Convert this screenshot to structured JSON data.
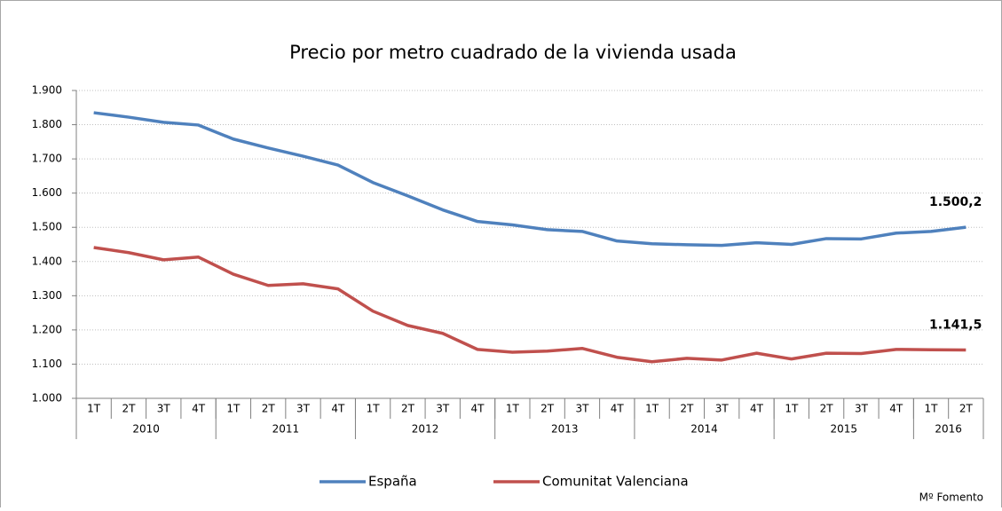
{
  "chart_data": {
    "type": "line",
    "title": "Precio por metro cuadrado de la vivienda usada",
    "source": "Mº Fomento",
    "categories": [
      "1T",
      "2T",
      "3T",
      "4T",
      "1T",
      "2T",
      "3T",
      "4T",
      "1T",
      "2T",
      "3T",
      "4T",
      "1T",
      "2T",
      "3T",
      "4T",
      "1T",
      "2T",
      "3T",
      "4T",
      "1T",
      "2T",
      "3T",
      "4T",
      "1T",
      "2T"
    ],
    "category_groups": [
      {
        "name": "2010",
        "span": 4
      },
      {
        "name": "2011",
        "span": 4
      },
      {
        "name": "2012",
        "span": 4
      },
      {
        "name": "2013",
        "span": 4
      },
      {
        "name": "2014",
        "span": 4
      },
      {
        "name": "2015",
        "span": 4
      },
      {
        "name": "2016",
        "span": 2
      }
    ],
    "series": [
      {
        "name": "España",
        "color": "#4f81bd",
        "label_color": "#1f4e79",
        "values": [
          1835,
          1822,
          1807,
          1799,
          1758,
          1732,
          1708,
          1682,
          1631,
          1592,
          1551,
          1517,
          1507,
          1493,
          1488,
          1460,
          1452,
          1449,
          1447,
          1455,
          1450,
          1467,
          1466,
          1483,
          1488,
          1500.2
        ],
        "value_labels": [
          null,
          null,
          null,
          null,
          null,
          null,
          null,
          null,
          null,
          null,
          null,
          null,
          null,
          null,
          null,
          null,
          null,
          null,
          null,
          null,
          null,
          null,
          null,
          null,
          null,
          "1.500,2"
        ]
      },
      {
        "name": "Comunitat Valenciana",
        "color": "#c0504d",
        "label_color": "#943634",
        "values": [
          1441,
          1426,
          1405,
          1413,
          1363,
          1330,
          1335,
          1320,
          1255,
          1213,
          1190,
          1143,
          1135,
          1138,
          1146,
          1120,
          1107,
          1117,
          1112,
          1132,
          1115,
          1132,
          1131,
          1143,
          1142,
          1141.5
        ],
        "value_labels": [
          null,
          null,
          null,
          null,
          null,
          null,
          null,
          null,
          null,
          null,
          null,
          null,
          null,
          null,
          null,
          null,
          null,
          null,
          null,
          null,
          null,
          null,
          null,
          null,
          null,
          "1.141,5"
        ]
      }
    ],
    "ylim": [
      1000,
      1900
    ],
    "yticks": [
      {
        "value": 1000,
        "label": "1.000"
      },
      {
        "value": 1100,
        "label": "1.100"
      },
      {
        "value": 1200,
        "label": "1.200"
      },
      {
        "value": 1300,
        "label": "1.300"
      },
      {
        "value": 1400,
        "label": "1.400"
      },
      {
        "value": 1500,
        "label": "1.500"
      },
      {
        "value": 1600,
        "label": "1.600"
      },
      {
        "value": 1700,
        "label": "1.700"
      },
      {
        "value": 1800,
        "label": "1.800"
      },
      {
        "value": 1900,
        "label": "1.900"
      }
    ],
    "grid": true,
    "legend": "bottom"
  }
}
